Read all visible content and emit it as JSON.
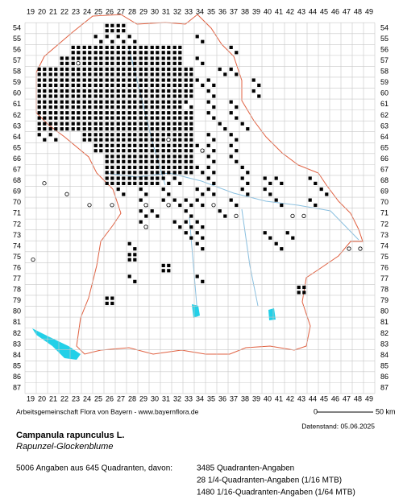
{
  "map": {
    "x_labels": [
      19,
      20,
      21,
      22,
      23,
      24,
      25,
      26,
      27,
      28,
      29,
      30,
      31,
      32,
      33,
      34,
      35,
      36,
      37,
      38,
      39,
      40,
      41,
      42,
      43,
      44,
      45,
      46,
      47,
      48,
      49
    ],
    "y_labels": [
      54,
      55,
      56,
      57,
      58,
      59,
      60,
      61,
      62,
      63,
      64,
      65,
      66,
      67,
      68,
      69,
      70,
      71,
      72,
      73,
      74,
      75,
      76,
      77,
      78,
      79,
      80,
      81,
      82,
      83,
      84,
      85,
      86,
      87
    ],
    "credit": "Arbeitsgemeinschaft Flora von Bayern - www.bayernflora.de",
    "scale_start": "0",
    "scale_end": "50 km",
    "date": "Datenstand: 05.06.2025",
    "title": "Campanula rapunculus L.",
    "subtitle": "Rapunzel-Glockenblume",
    "summary": "5006 Angaben aus 645 Quadranten, davon:",
    "stats": [
      "3485 Quadranten-Angaben",
      "28 1/4-Quadranten-Angaben (1/16 MTB)",
      "1480 1/16-Quadranten-Angaben (1/64 MTB)"
    ]
  }
}
